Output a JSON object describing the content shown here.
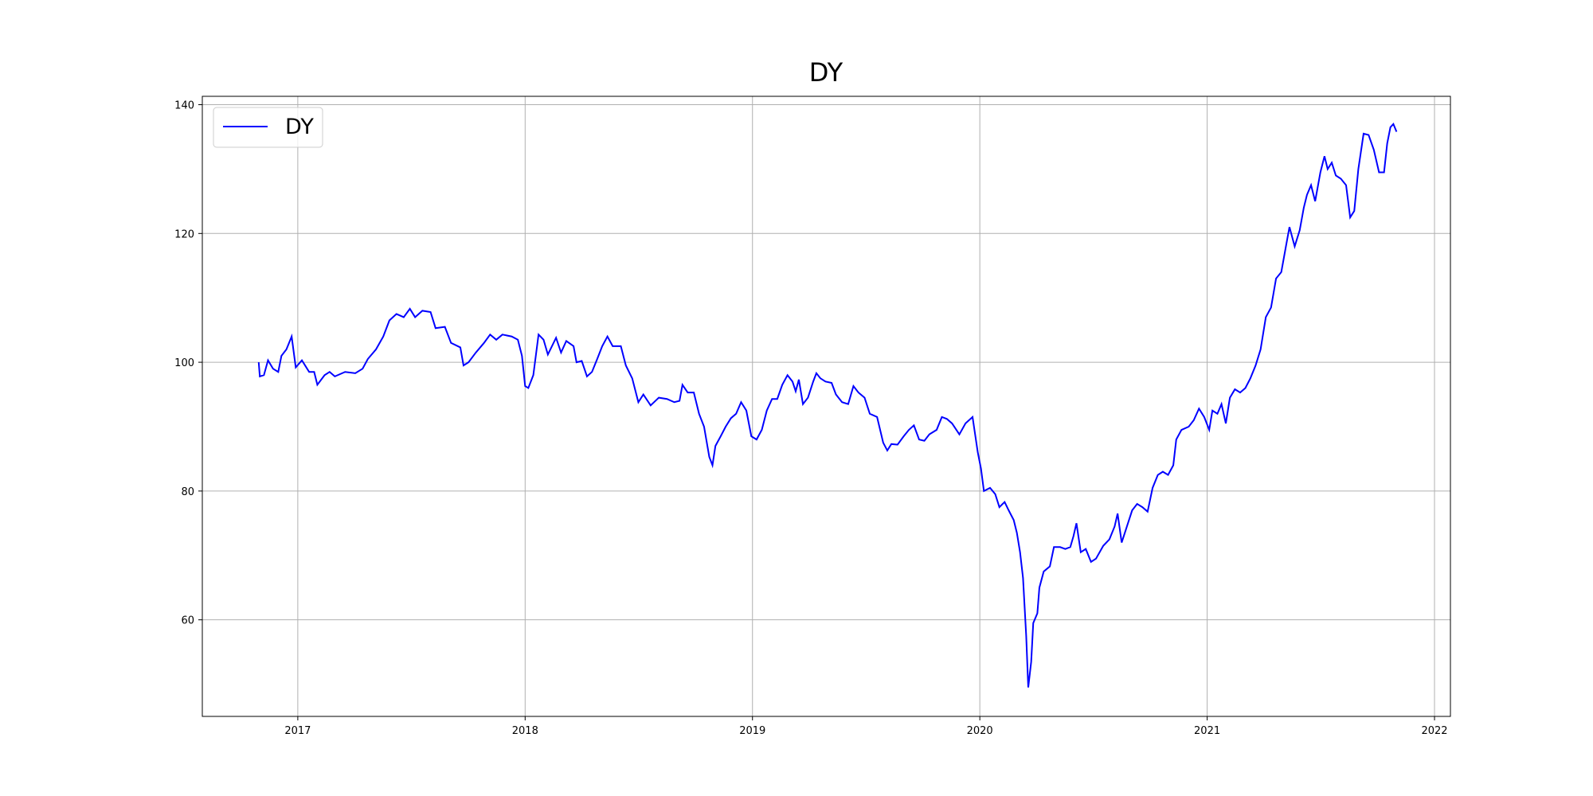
{
  "chart_data": {
    "type": "line",
    "title": "DY",
    "x": [
      2016.828,
      2016.833,
      2016.851,
      2016.869,
      2016.891,
      2016.914,
      2016.928,
      2016.95,
      2016.973,
      2016.991,
      2017.018,
      2017.05,
      2017.072,
      2017.086,
      2017.118,
      2017.14,
      2017.163,
      2017.208,
      2017.253,
      2017.285,
      2017.308,
      2017.344,
      2017.376,
      2017.403,
      2017.434,
      2017.466,
      2017.493,
      2017.516,
      2017.548,
      2017.584,
      2017.606,
      2017.647,
      2017.674,
      2017.715,
      2017.729,
      2017.751,
      2017.783,
      2017.819,
      2017.846,
      2017.873,
      2017.9,
      2017.941,
      2017.968,
      2017.986,
      2018.0,
      2018.014,
      2018.036,
      2018.059,
      2018.081,
      2018.1,
      2018.136,
      2018.158,
      2018.181,
      2018.213,
      2018.226,
      2018.249,
      2018.272,
      2018.294,
      2018.317,
      2018.339,
      2018.362,
      2018.385,
      2018.421,
      2018.443,
      2018.471,
      2018.498,
      2018.52,
      2018.552,
      2018.588,
      2018.624,
      2018.656,
      2018.679,
      2018.692,
      2018.715,
      2018.742,
      2018.765,
      2018.787,
      2018.81,
      2018.824,
      2018.837,
      2018.86,
      2018.882,
      2018.905,
      2018.928,
      2018.95,
      2018.973,
      2018.995,
      2019.018,
      2019.041,
      2019.063,
      2019.086,
      2019.109,
      2019.131,
      2019.154,
      2019.176,
      2019.19,
      2019.204,
      2019.222,
      2019.244,
      2019.267,
      2019.281,
      2019.299,
      2019.321,
      2019.348,
      2019.367,
      2019.394,
      2019.421,
      2019.444,
      2019.466,
      2019.493,
      2019.516,
      2019.548,
      2019.575,
      2019.593,
      2019.611,
      2019.638,
      2019.665,
      2019.688,
      2019.71,
      2019.733,
      2019.756,
      2019.778,
      2019.81,
      2019.833,
      2019.855,
      2019.878,
      2019.91,
      2019.937,
      2019.968,
      2019.991,
      2020.005,
      2020.018,
      2020.045,
      2020.068,
      2020.086,
      2020.109,
      2020.127,
      2020.149,
      2020.163,
      2020.177,
      2020.19,
      2020.204,
      2020.213,
      2020.226,
      2020.235,
      2020.253,
      2020.262,
      2020.281,
      2020.308,
      2020.326,
      2020.353,
      2020.376,
      2020.398,
      2020.412,
      2020.425,
      2020.444,
      2020.466,
      2020.489,
      2020.511,
      2020.543,
      2020.57,
      2020.593,
      2020.606,
      2020.624,
      2020.647,
      2020.67,
      2020.692,
      2020.715,
      2020.738,
      2020.76,
      2020.783,
      2020.805,
      2020.828,
      2020.851,
      2020.864,
      2020.887,
      2020.919,
      2020.941,
      2020.964,
      2020.987,
      2021.009,
      2021.023,
      2021.045,
      2021.063,
      2021.082,
      2021.1,
      2021.122,
      2021.145,
      2021.168,
      2021.19,
      2021.213,
      2021.235,
      2021.258,
      2021.281,
      2021.303,
      2021.326,
      2021.349,
      2021.362,
      2021.385,
      2021.407,
      2021.425,
      2021.439,
      2021.457,
      2021.475,
      2021.498,
      2021.516,
      2021.53,
      2021.548,
      2021.566,
      2021.588,
      2021.611,
      2021.629,
      2021.647,
      2021.665,
      2021.688,
      2021.71,
      2021.733,
      2021.756,
      2021.778,
      2021.792,
      2021.806,
      2021.819,
      2021.833
    ],
    "series": [
      {
        "name": "DY",
        "color": "#0000ff",
        "values": [
          100,
          97.8,
          98,
          100.3,
          99,
          98.5,
          101,
          102,
          104,
          99.2,
          100.3,
          98.5,
          98.5,
          96.5,
          98,
          98.5,
          97.8,
          98.5,
          98.3,
          99,
          100.5,
          102,
          104,
          106.5,
          107.5,
          107,
          108.3,
          107,
          108,
          107.8,
          105.3,
          105.5,
          103,
          102.3,
          99.5,
          100,
          101.5,
          103,
          104.3,
          103.5,
          104.3,
          104,
          103.5,
          101,
          96.3,
          96,
          98,
          104.3,
          103.5,
          101.2,
          103.8,
          101.5,
          103.3,
          102.5,
          100,
          100.2,
          97.8,
          98.5,
          100.5,
          102.5,
          104,
          102.5,
          102.5,
          99.5,
          97.5,
          93.8,
          95,
          93.3,
          94.5,
          94.3,
          93.8,
          94,
          96.5,
          95.3,
          95.3,
          92,
          90,
          85.3,
          84,
          87,
          88.5,
          90,
          91.3,
          92,
          93.8,
          92.5,
          88.5,
          88,
          89.5,
          92.5,
          94.3,
          94.3,
          96.5,
          98,
          97,
          95.5,
          97.3,
          93.5,
          94.5,
          97,
          98.3,
          97.5,
          97,
          96.8,
          95,
          93.8,
          93.5,
          96.3,
          95.3,
          94.5,
          92,
          91.5,
          87.5,
          86.3,
          87.3,
          87.2,
          88.5,
          89.5,
          90.2,
          88,
          87.8,
          88.8,
          89.5,
          91.5,
          91.2,
          90.5,
          88.8,
          90.5,
          91.5,
          86,
          83.5,
          80,
          80.5,
          79.5,
          77.5,
          78.3,
          77,
          75.5,
          73.5,
          70.5,
          66.5,
          57.5,
          49.5,
          53.5,
          59.5,
          61,
          65,
          67.5,
          68.3,
          71.3,
          71.3,
          71,
          71.3,
          73,
          75,
          70.5,
          71,
          69,
          69.5,
          71.5,
          72.5,
          74.5,
          76.5,
          72,
          74.5,
          77,
          78,
          77.5,
          76.8,
          80.5,
          82.5,
          83,
          82.5,
          84,
          88,
          89.5,
          90,
          91,
          92.8,
          91.5,
          89.5,
          92.5,
          92,
          93.5,
          90.5,
          94.5,
          95.8,
          95.3,
          96,
          97.5,
          99.5,
          102,
          107,
          108.5,
          113,
          114,
          118.5,
          121,
          118,
          120.5,
          124,
          126,
          127.5,
          125,
          129.5,
          132,
          130,
          131,
          129,
          128.5,
          127.5,
          122.5,
          123.5,
          130,
          135.5,
          135.3,
          133,
          129.5,
          129.5,
          134,
          136.5,
          137,
          135.8
        ]
      }
    ],
    "xlim": [
      2016.58,
      2022.07
    ],
    "xticks": [
      2017,
      2018,
      2019,
      2020,
      2021,
      2022
    ],
    "ylim": [
      45,
      141.3
    ],
    "yticks": [
      60,
      80,
      100,
      120,
      140
    ],
    "grid": true,
    "legend": "upper-left"
  }
}
